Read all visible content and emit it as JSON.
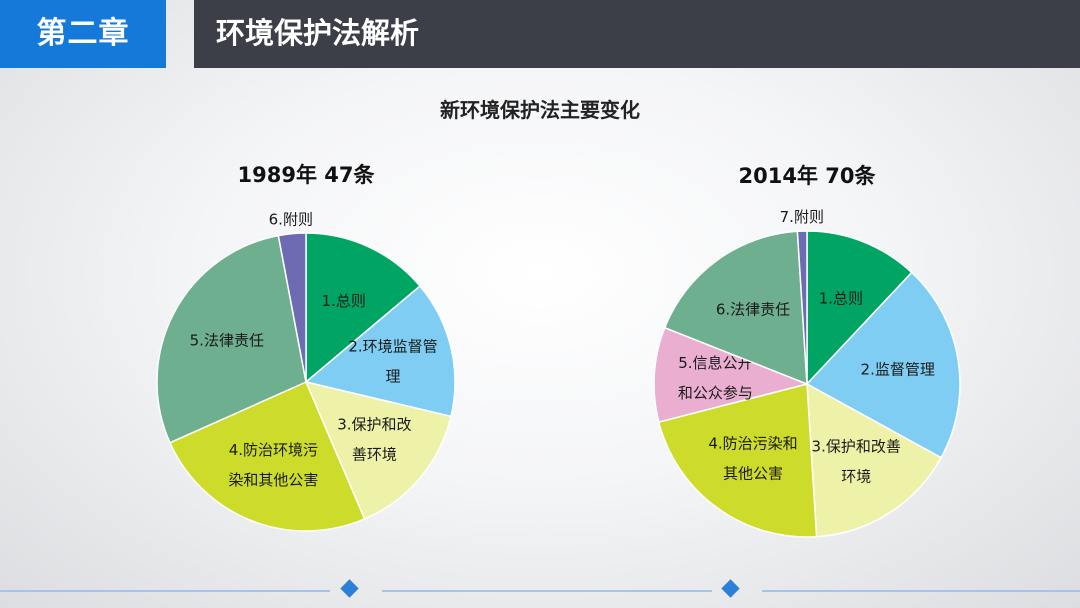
{
  "header": {
    "chapter_label": "第二章",
    "title": "环境保护法解析"
  },
  "colors": {
    "chapter_bg": "#1479d9",
    "title_bg": "#3c3f47"
  },
  "main_title": "新环境保护法主要变化",
  "chart_data": [
    {
      "type": "pie",
      "title": "1989年 47条",
      "slices": [
        {
          "label": [
            "1.总则"
          ],
          "value": 14,
          "color": "#00a564"
        },
        {
          "label": [
            "2.环境监督管",
            "理"
          ],
          "value": 15,
          "color": "#7fcdf2"
        },
        {
          "label": [
            "3.保护和改",
            "善环境"
          ],
          "value": 15,
          "color": "#eef2a8"
        },
        {
          "label": [
            "4.防治环境污",
            "染和其他公害"
          ],
          "value": 25,
          "color": "#cddc2a"
        },
        {
          "label": [
            "5.法律责任"
          ],
          "value": 29,
          "color": "#6daf8e"
        },
        {
          "label": [
            "6.附则"
          ],
          "value": 3,
          "color": "#6d6bb1"
        }
      ]
    },
    {
      "type": "pie",
      "title": "2014年 70条",
      "slices": [
        {
          "label": [
            "1.总则"
          ],
          "value": 12,
          "color": "#00a564"
        },
        {
          "label": [
            "2.监督管理"
          ],
          "value": 21,
          "color": "#7fcdf2"
        },
        {
          "label": [
            "3.保护和改善",
            "环境"
          ],
          "value": 16,
          "color": "#eef2a8"
        },
        {
          "label": [
            "4.防治污染和",
            "其他公害"
          ],
          "value": 22,
          "color": "#cddc2a"
        },
        {
          "label": [
            "5.信息公开",
            "和公众参与"
          ],
          "value": 10,
          "color": "#eaaed0"
        },
        {
          "label": [
            "6.法律责任"
          ],
          "value": 18,
          "color": "#6daf8e"
        },
        {
          "label": [
            "7.附则"
          ],
          "value": 1,
          "color": "#6d6bb1"
        }
      ]
    }
  ]
}
